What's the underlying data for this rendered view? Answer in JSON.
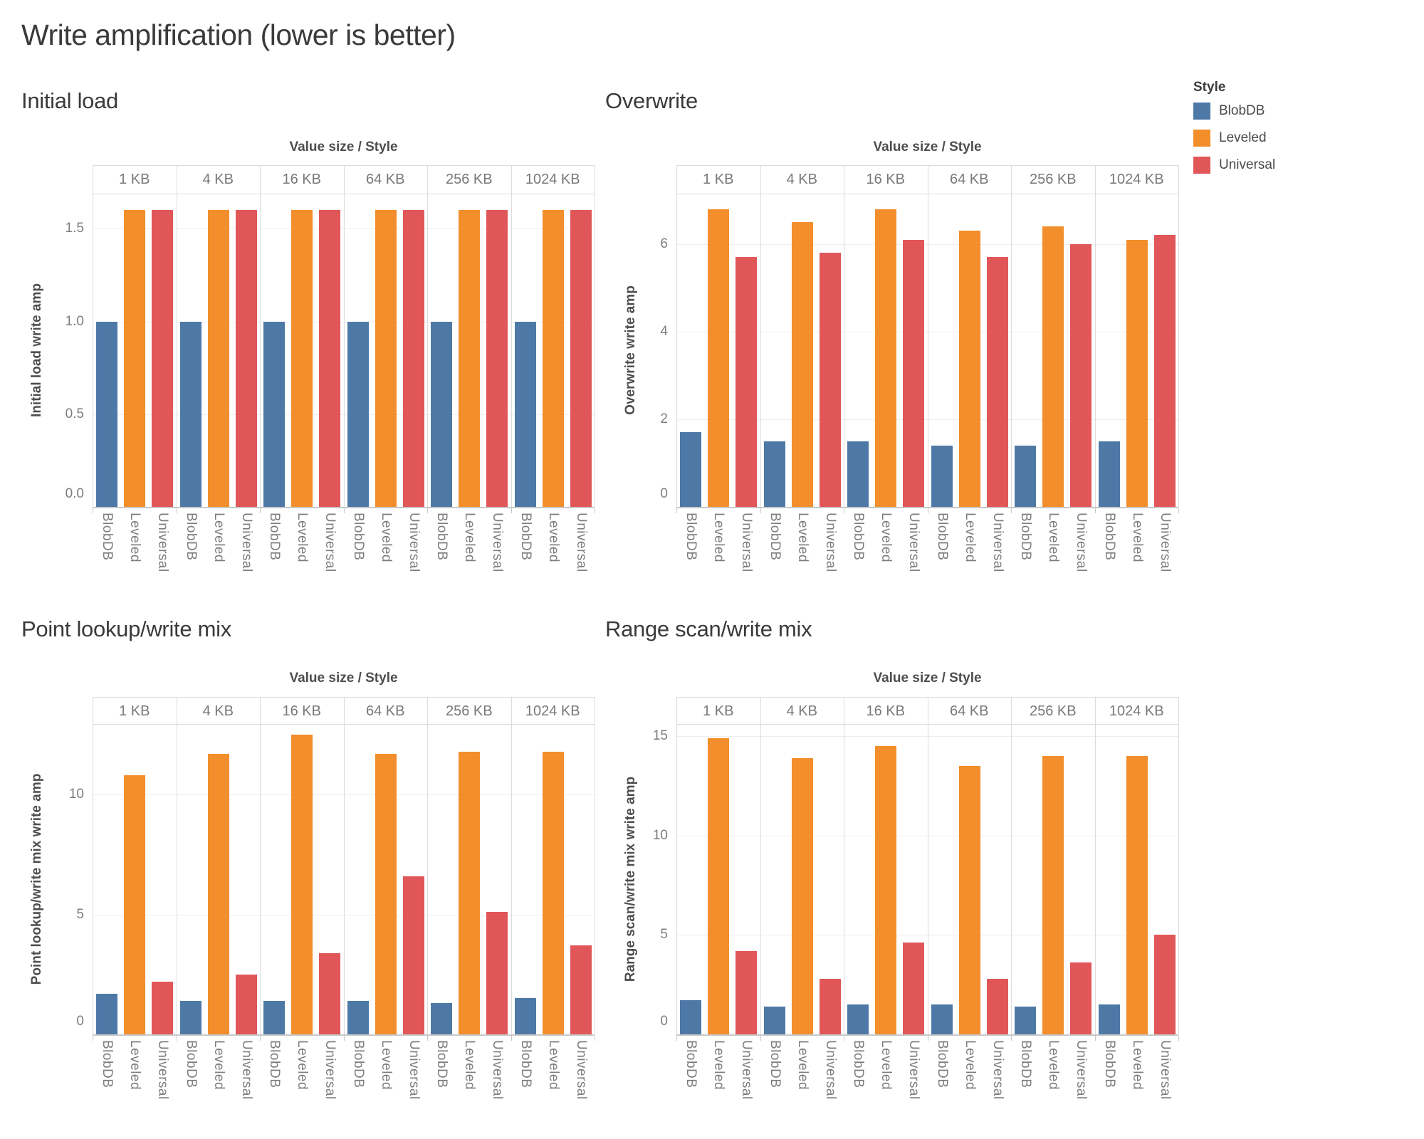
{
  "page": {
    "title": "Write amplification (lower is better)",
    "background": "#ffffff"
  },
  "legend": {
    "title": "Style",
    "items": [
      {
        "label": "BlobDB",
        "color": "#4e79a7"
      },
      {
        "label": "Leveled",
        "color": "#f28e2b"
      },
      {
        "label": "Universal",
        "color": "#e15759"
      }
    ]
  },
  "chart_data": [
    {
      "type": "bar",
      "title": "Initial load",
      "ylabel": "Initial load write amp",
      "column_header": "Value size / Style",
      "categories": [
        "1 KB",
        "4 KB",
        "16 KB",
        "64 KB",
        "256 KB",
        "1024 KB"
      ],
      "series": [
        {
          "name": "BlobDB",
          "color": "#4e79a7",
          "values": [
            1.0,
            1.0,
            1.0,
            1.0,
            1.0,
            1.0
          ]
        },
        {
          "name": "Leveled",
          "color": "#f28e2b",
          "values": [
            1.6,
            1.6,
            1.6,
            1.6,
            1.6,
            1.6
          ]
        },
        {
          "name": "Universal",
          "color": "#e15759",
          "values": [
            1.6,
            1.6,
            1.6,
            1.6,
            1.6,
            1.6
          ]
        }
      ],
      "yticks": [
        0,
        0.5,
        1.0,
        1.5
      ],
      "ytick_labels": [
        "0.0",
        "0.5",
        "1.0",
        "1.5"
      ],
      "ylim": [
        0,
        1.69
      ],
      "grid": true,
      "legend_position": "top-right"
    },
    {
      "type": "bar",
      "title": "Overwrite",
      "ylabel": "Overwrite write amp",
      "column_header": "Value size / Style",
      "categories": [
        "1 KB",
        "4 KB",
        "16 KB",
        "64 KB",
        "256 KB",
        "1024 KB"
      ],
      "series": [
        {
          "name": "BlobDB",
          "color": "#4e79a7",
          "values": [
            1.7,
            1.5,
            1.5,
            1.4,
            1.4,
            1.5
          ]
        },
        {
          "name": "Leveled",
          "color": "#f28e2b",
          "values": [
            6.8,
            6.5,
            6.8,
            6.3,
            6.4,
            6.1
          ]
        },
        {
          "name": "Universal",
          "color": "#e15759",
          "values": [
            5.7,
            5.8,
            6.1,
            5.7,
            6.0,
            6.2
          ]
        }
      ],
      "yticks": [
        0,
        2,
        4,
        6
      ],
      "ytick_labels": [
        "0",
        "2",
        "4",
        "6"
      ],
      "ylim": [
        0,
        7.15
      ],
      "grid": true,
      "legend_position": "top-right"
    },
    {
      "type": "bar",
      "title": "Point lookup/write mix",
      "ylabel": "Point lookup/write mix write amp",
      "column_header": "Value size / Style",
      "categories": [
        "1 KB",
        "4 KB",
        "16 KB",
        "64 KB",
        "256 KB",
        "1024 KB"
      ],
      "series": [
        {
          "name": "BlobDB",
          "color": "#4e79a7",
          "values": [
            1.7,
            1.4,
            1.4,
            1.4,
            1.3,
            1.5
          ]
        },
        {
          "name": "Leveled",
          "color": "#f28e2b",
          "values": [
            10.8,
            11.7,
            12.5,
            11.7,
            11.8,
            11.8
          ]
        },
        {
          "name": "Universal",
          "color": "#e15759",
          "values": [
            2.2,
            2.5,
            3.4,
            6.6,
            5.1,
            3.7
          ]
        }
      ],
      "yticks": [
        0,
        5,
        10
      ],
      "ytick_labels": [
        "0",
        "5",
        "10"
      ],
      "ylim": [
        0,
        12.95
      ],
      "grid": true,
      "legend_position": "top-right"
    },
    {
      "type": "bar",
      "title": "Range scan/write mix",
      "ylabel": "Range scan/write mix write amp",
      "column_header": "Value size / Style",
      "categories": [
        "1 KB",
        "4 KB",
        "16 KB",
        "64 KB",
        "256 KB",
        "1024 KB"
      ],
      "series": [
        {
          "name": "BlobDB",
          "color": "#4e79a7",
          "values": [
            1.7,
            1.4,
            1.5,
            1.5,
            1.4,
            1.5
          ]
        },
        {
          "name": "Leveled",
          "color": "#f28e2b",
          "values": [
            14.9,
            13.9,
            14.5,
            13.5,
            14.0,
            14.0
          ]
        },
        {
          "name": "Universal",
          "color": "#e15759",
          "values": [
            4.2,
            2.8,
            4.6,
            2.8,
            3.6,
            5.0
          ]
        }
      ],
      "yticks": [
        0,
        5,
        10,
        15
      ],
      "ytick_labels": [
        "0",
        "5",
        "10",
        "15"
      ],
      "ylim": [
        0,
        15.6
      ],
      "grid": true,
      "legend_position": "top-right"
    }
  ]
}
